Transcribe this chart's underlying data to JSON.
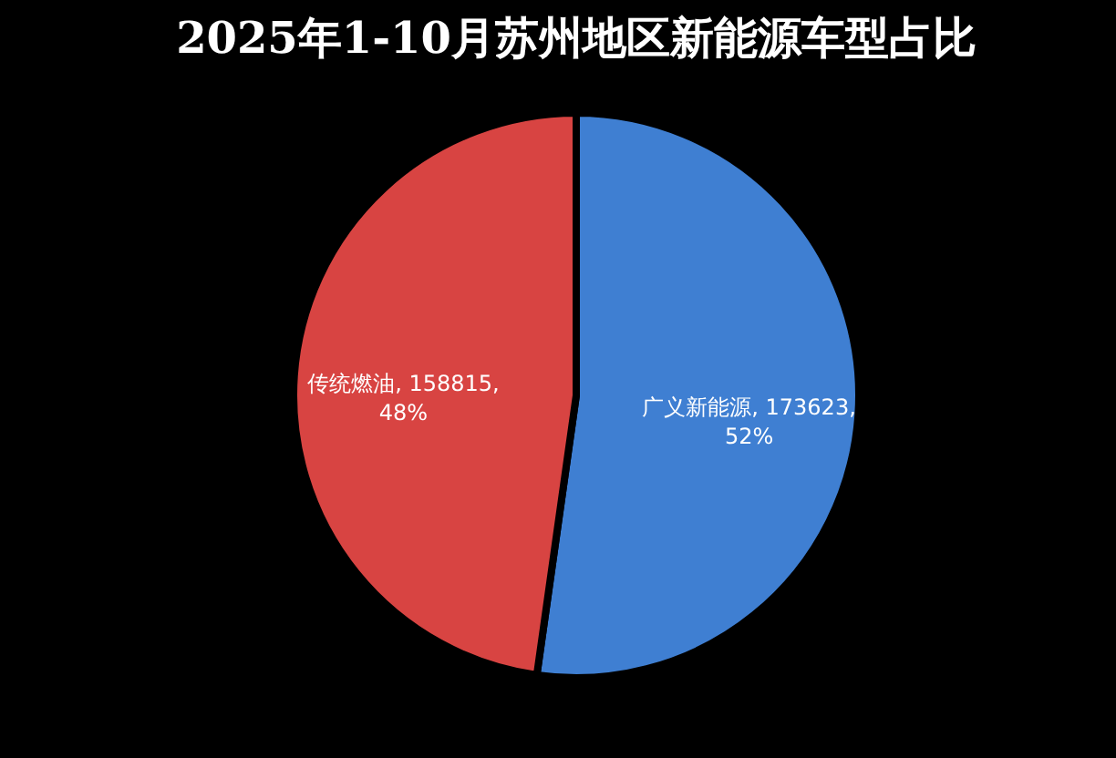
{
  "chart_data": {
    "type": "pie",
    "title": "2025年1-10月苏州地区新能源车型占比",
    "categories": [
      "广义新能源",
      "传统燃油"
    ],
    "values": [
      173623,
      158815
    ],
    "colors": [
      "#3f7fd2",
      "#d84442"
    ],
    "value_labels": [
      "173623, 52%",
      "158815, 48%"
    ],
    "legend": false
  }
}
